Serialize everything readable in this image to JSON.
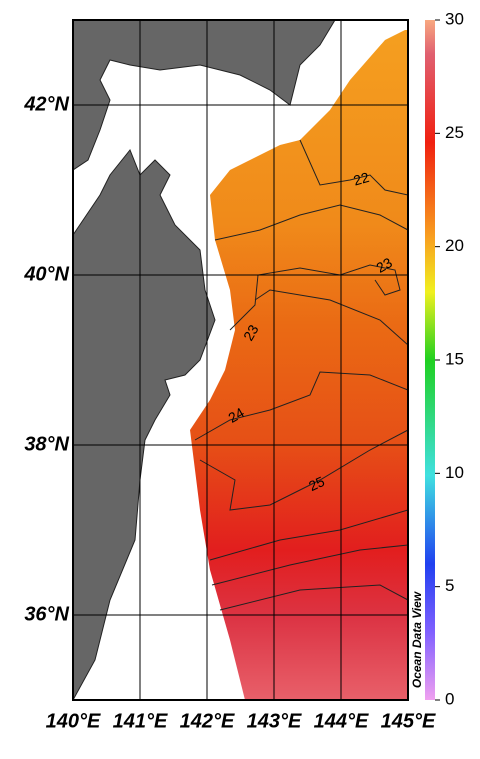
{
  "map": {
    "xlim": [
      140,
      145
    ],
    "ylim": [
      35,
      43
    ],
    "xticks": [
      {
        "value": 140,
        "label": "140°E"
      },
      {
        "value": 141,
        "label": "141°E"
      },
      {
        "value": 142,
        "label": "142°E"
      },
      {
        "value": 143,
        "label": "143°E"
      },
      {
        "value": 144,
        "label": "144°E"
      },
      {
        "value": 145,
        "label": "145°E"
      }
    ],
    "yticks": [
      {
        "value": 36,
        "label": "36°N"
      },
      {
        "value": 38,
        "label": "38°N"
      },
      {
        "value": 40,
        "label": "40°N"
      },
      {
        "value": 42,
        "label": "42°N"
      }
    ],
    "grid": true,
    "colorbar": {
      "lim": [
        0,
        30
      ],
      "ticks": [
        0,
        5,
        10,
        15,
        20,
        25,
        30
      ]
    },
    "contour_labels": [
      22,
      23,
      23,
      24,
      25
    ],
    "watermark": "Ocean Data View"
  }
}
